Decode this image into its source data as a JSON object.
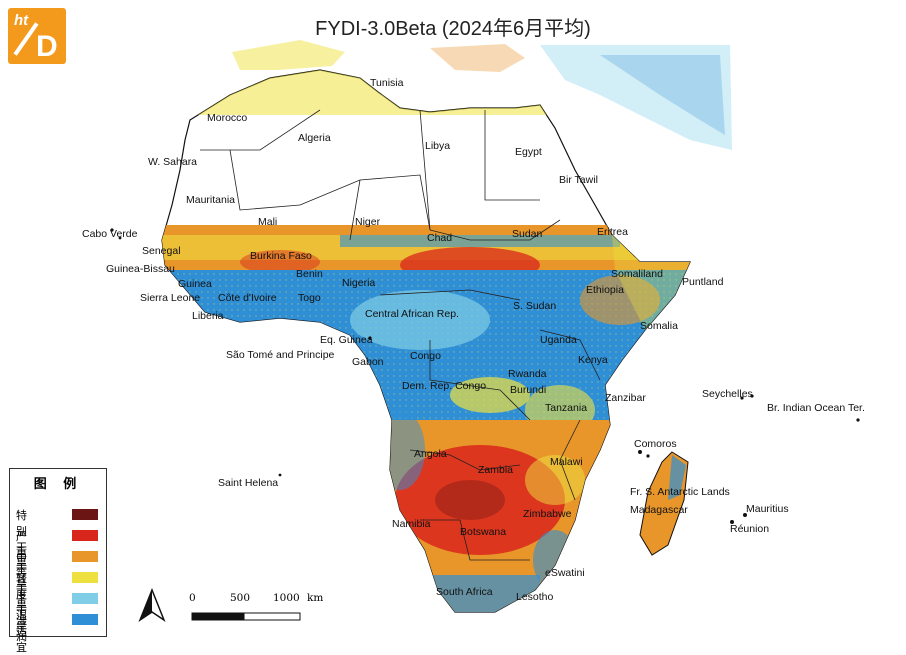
{
  "title": "FYDI-3.0Beta (2024年6月平均)",
  "logo": {
    "top": "ht",
    "main": "D"
  },
  "legend": {
    "title": "图 例",
    "items": [
      {
        "label": "特别干旱",
        "color": "#6b1515"
      },
      {
        "label": "严重干旱",
        "color": "#d9261c"
      },
      {
        "label": "中等干旱",
        "color": "#e8962a"
      },
      {
        "label": "轻度干旱",
        "color": "#eee13f"
      },
      {
        "label": "干湿适宜",
        "color": "#7fcde6"
      },
      {
        "label": "湿润",
        "color": "#2f8fd6"
      }
    ]
  },
  "scale_bar": {
    "labels": [
      "0",
      "500",
      "1000"
    ],
    "unit": "km"
  },
  "labels": {
    "tunisia": "Tunisia",
    "morocco": "Morocco",
    "algeria": "Algeria",
    "libya": "Libya",
    "egypt": "Egypt",
    "w_sahara": "W. Sahara",
    "bir_tawil": "Bir Tawil",
    "mauritania": "Mauritania",
    "mali": "Mali",
    "niger": "Niger",
    "cabo_verde": "Cabo Verde",
    "senegal": "Senegal",
    "chad": "Chad",
    "sudan": "Sudan",
    "eritrea": "Eritrea",
    "guinea_bissau": "Guinea-Bissau",
    "guinea": "Guinea",
    "burkina_faso": "Burkina Faso",
    "benin": "Benin",
    "nigeria": "Nigeria",
    "somaliland": "Somaliland",
    "puntland": "Puntland",
    "ethiopia": "Ethiopia",
    "sierra_leone": "Sierra Leone",
    "cote_divoire": "Côte d'Ivoire",
    "togo": "Togo",
    "s_sudan": "S. Sudan",
    "liberia": "Liberia",
    "car": "Central African Rep.",
    "somalia": "Somalia",
    "eq_guinea": "Eq. Guinea",
    "uganda": "Uganda",
    "sao_tome": "São Tomé and Principe",
    "congo": "Congo",
    "kenya": "Kenya",
    "gabon": "Gabon",
    "rwanda": "Rwanda",
    "drc": "Dem. Rep. Congo",
    "burundi": "Burundi",
    "zanzibar": "Zanzibar",
    "seychelles": "Seychelles",
    "tanzania": "Tanzania",
    "br_indian_ocean": "Br. Indian Ocean Ter.",
    "comoros": "Comoros",
    "malawi": "Malawi",
    "angola": "Angola",
    "zambia": "Zambia",
    "saint_helena": "Saint Helena",
    "fr_s_antarctic": "Fr. S. Antarctic Lands",
    "mauritius": "Mauritius",
    "madagascar": "Madagascar",
    "zimbabwe": "Zimbabwe",
    "reunion": "Réunion",
    "namibia": "Namibia",
    "botswana": "Botswana",
    "eswatini": "eSwatini",
    "south_africa": "South Africa",
    "lesotho": "Lesotho"
  }
}
